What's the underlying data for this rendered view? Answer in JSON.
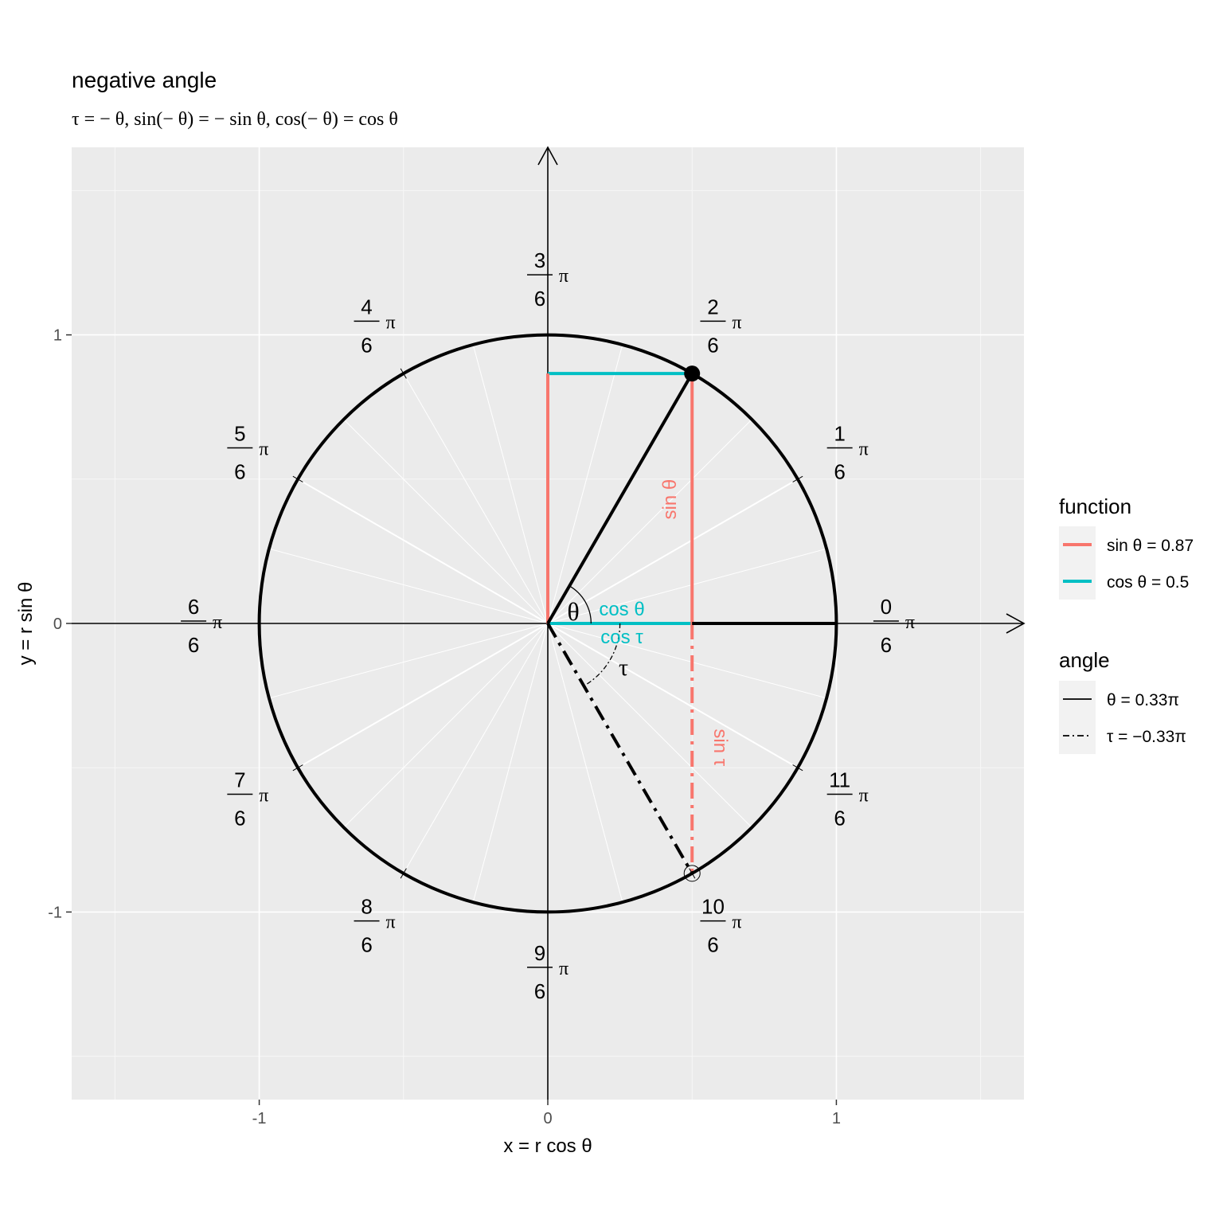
{
  "chart_data": {
    "type": "line",
    "title": "negative angle",
    "subtitle": "τ = − θ, sin(− θ) = − sin θ, cos(− θ) = cos θ",
    "xlabel": "x = r cos θ",
    "ylabel": "y = r sin θ",
    "xlim": [
      -1.65,
      1.65
    ],
    "ylim": [
      -1.65,
      1.65
    ],
    "x_ticks": [
      -1,
      0,
      1
    ],
    "x_tick_labels": [
      "-1",
      "0",
      "1"
    ],
    "y_ticks": [
      -1,
      0,
      1
    ],
    "y_tick_labels": [
      "-1",
      "0",
      "1"
    ],
    "grid": true,
    "circle": {
      "radius": 1
    },
    "angle_marks": [
      {
        "num": "0",
        "den": "6",
        "angle": 0
      },
      {
        "num": "1",
        "den": "6",
        "angle": 0.5236
      },
      {
        "num": "2",
        "den": "6",
        "angle": 1.0472
      },
      {
        "num": "3",
        "den": "6",
        "angle": 1.5708
      },
      {
        "num": "4",
        "den": "6",
        "angle": 2.0944
      },
      {
        "num": "5",
        "den": "6",
        "angle": 2.618
      },
      {
        "num": "6",
        "den": "6",
        "angle": 3.1416
      },
      {
        "num": "7",
        "den": "6",
        "angle": 3.6652
      },
      {
        "num": "8",
        "den": "6",
        "angle": 4.1888
      },
      {
        "num": "9",
        "den": "6",
        "angle": 4.7124
      },
      {
        "num": "10",
        "den": "6",
        "angle": 5.236
      },
      {
        "num": "11",
        "den": "6",
        "angle": 5.7596
      }
    ],
    "pi_symbol": "π",
    "theta": 1.0472,
    "tau": -1.0472,
    "point_theta": [
      0.5,
      0.866
    ],
    "point_tau": [
      0.5,
      -0.866
    ],
    "series": [
      {
        "name": "sin θ = 0.87",
        "color": "#F8766D",
        "kind": "sin θ",
        "x": [
          0.5,
          0.5
        ],
        "y": [
          0,
          0.866
        ]
      },
      {
        "name": "sin θ = 0.87",
        "color": "#F8766D",
        "kind": "sin θ",
        "x": [
          0,
          0
        ],
        "y": [
          0,
          0.866
        ]
      },
      {
        "name": "cos θ = 0.5",
        "color": "#00BFC4",
        "kind": "cos θ",
        "x": [
          0,
          0.5
        ],
        "y": [
          0,
          0
        ]
      },
      {
        "name": "cos θ = 0.5",
        "color": "#00BFC4",
        "kind": "cos θ",
        "x": [
          0,
          0.5
        ],
        "y": [
          0.866,
          0.866
        ]
      },
      {
        "name": "sin τ",
        "color": "#F8766D",
        "kind": "sin τ",
        "x": [
          0.5,
          0.5
        ],
        "y": [
          0,
          -0.866
        ]
      }
    ],
    "annotations": {
      "theta_label": "θ",
      "tau_label": "τ",
      "sin_theta": "sin θ",
      "sin_tau": "sin τ",
      "cos_theta": "cos θ",
      "cos_tau": "cos τ"
    },
    "legend": {
      "placement": "right",
      "function_title": "function",
      "function_items": [
        {
          "label": "sin θ = 0.87",
          "color": "#F8766D"
        },
        {
          "label": "cos θ = 0.5",
          "color": "#00BFC4"
        }
      ],
      "angle_title": "angle",
      "angle_items": [
        {
          "label": "θ = 0.33π",
          "linetype": "solid"
        },
        {
          "label": "τ = −0.33π",
          "linetype": "dotdash"
        }
      ]
    }
  }
}
